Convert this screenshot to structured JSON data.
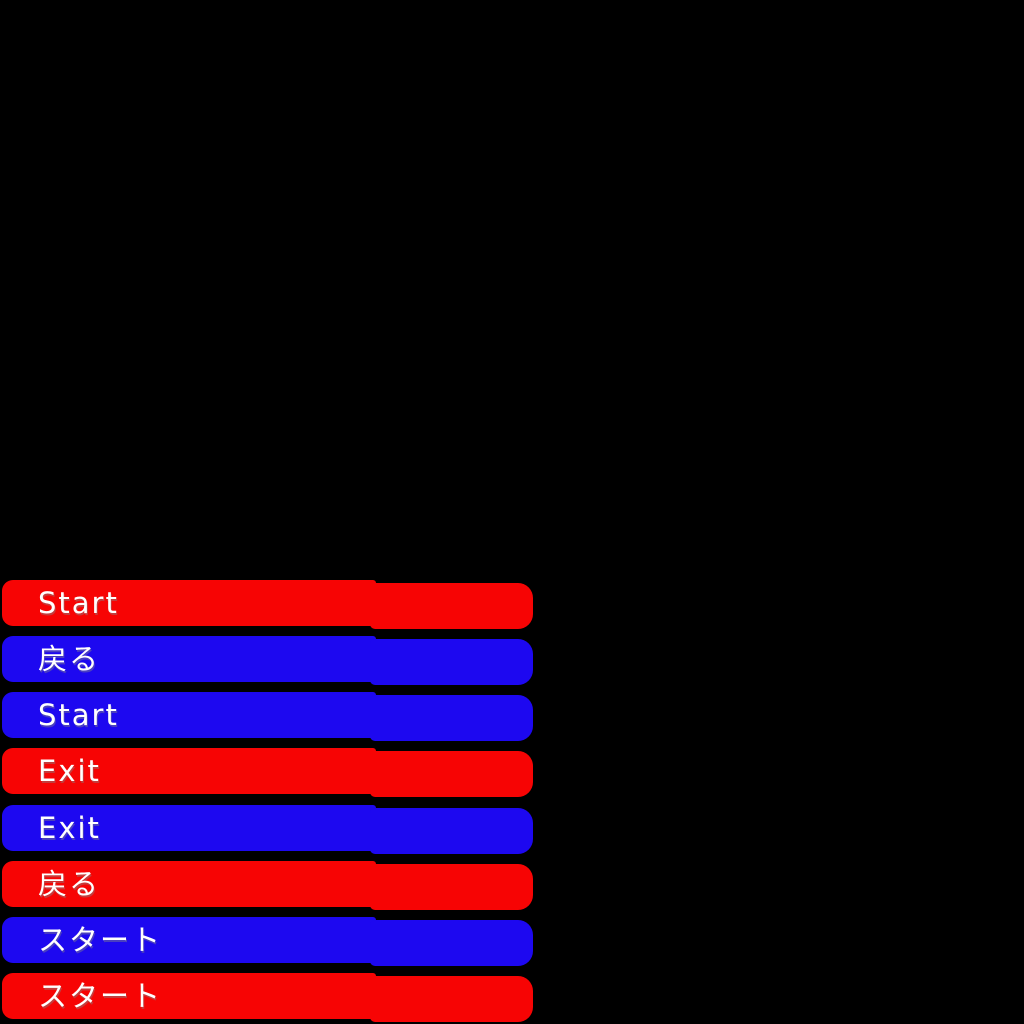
{
  "screen": {
    "background": "#000000"
  },
  "colors": {
    "red": "#f70404",
    "blue": "#1d08f0",
    "label": "#ffffff"
  },
  "menu": {
    "buttons": [
      {
        "label": "Start",
        "color": "red"
      },
      {
        "label": "戻る",
        "color": "blue"
      },
      {
        "label": "Start",
        "color": "blue"
      },
      {
        "label": "Exit",
        "color": "red"
      },
      {
        "label": "Exit",
        "color": "blue"
      },
      {
        "label": "戻る",
        "color": "red"
      },
      {
        "label": "スタート",
        "color": "blue"
      },
      {
        "label": "スタート",
        "color": "red"
      }
    ]
  }
}
